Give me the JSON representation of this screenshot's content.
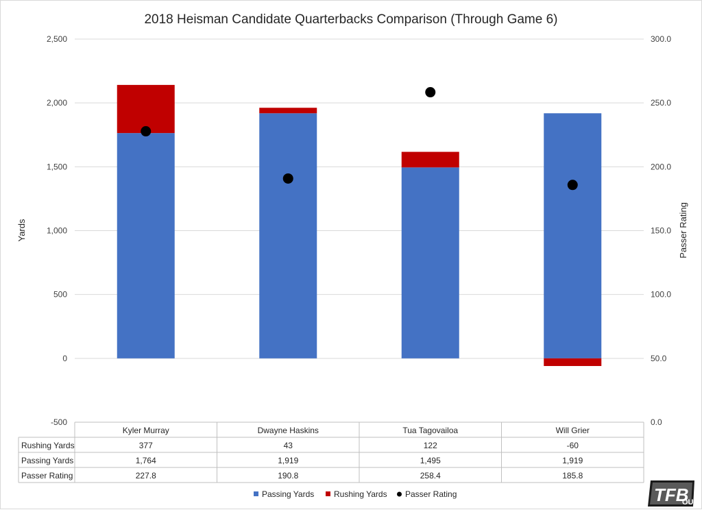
{
  "chart_data": {
    "type": "bar",
    "stacked": true,
    "title": "2018 Heisman Candidate Quarterbacks Comparison (Through Game 6)",
    "categories": [
      "Kyler Murray",
      "Dwayne Haskins",
      "Tua Tagovailoa",
      "Will Grier"
    ],
    "series": [
      {
        "name": "Passing Yards",
        "type": "bar",
        "axis": "left",
        "color": "#4472c4",
        "values": [
          1764,
          1919,
          1495,
          1919
        ]
      },
      {
        "name": "Rushing Yards",
        "type": "bar",
        "axis": "left",
        "color": "#c00000",
        "values": [
          377,
          43,
          122,
          -60
        ]
      },
      {
        "name": "Passer Rating",
        "type": "scatter",
        "axis": "right",
        "color": "#000000",
        "values": [
          227.8,
          190.8,
          258.4,
          185.8
        ]
      }
    ],
    "ylabel": "Yards",
    "y2label": "Passer Rating",
    "ylim": [
      -500,
      2500
    ],
    "y2lim": [
      0,
      300
    ],
    "yticks": [
      "-500",
      "0",
      "500",
      "1,000",
      "1,500",
      "2,000",
      "2,500"
    ],
    "y2ticks": [
      "0.0",
      "50.0",
      "100.0",
      "150.0",
      "200.0",
      "250.0",
      "300.0"
    ],
    "grid": true,
    "legend_position": "bottom",
    "data_table": {
      "rows": [
        {
          "label": "Rushing Yards",
          "cells": [
            "377",
            "43",
            "122",
            "-60"
          ]
        },
        {
          "label": "Passing Yards",
          "cells": [
            "1,764",
            "1,919",
            "1,495",
            "1,919"
          ]
        },
        {
          "label": "Passer Rating",
          "cells": [
            "227.8",
            "190.8",
            "258.4",
            "185.8"
          ]
        }
      ]
    }
  },
  "logo": {
    "text": "TFB",
    "sub": "OU"
  }
}
